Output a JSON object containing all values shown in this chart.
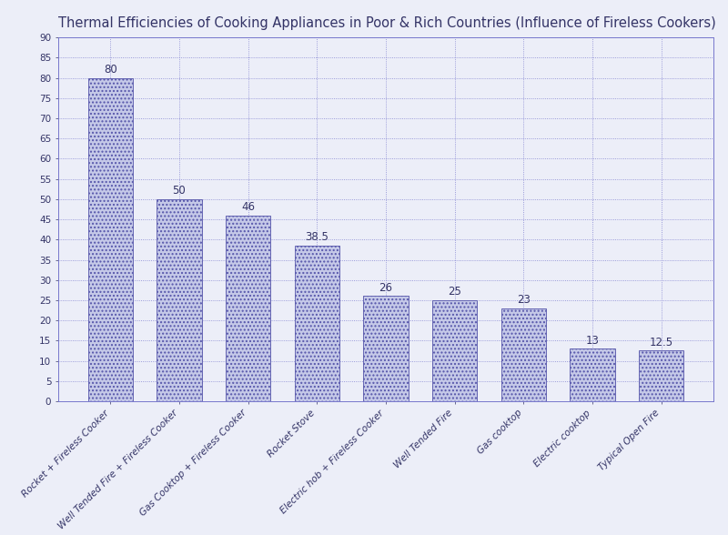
{
  "title": "Thermal Efficiencies of Cooking Appliances in Poor & Rich Countries (Influence of Fireless Cookers)",
  "categories": [
    "Rocket + Fireless Cooker",
    "Well Tended Fire + Fireless Cooker",
    "Gas Cooktop + Fireless Cooker",
    "Rocket Stove",
    "Electric hob + Fireless Cooker",
    "Well Tended Fire",
    "Gas cooktop",
    "Electric cooktop",
    "Typical Open Fire"
  ],
  "values": [
    80,
    50,
    46,
    38.5,
    26,
    25,
    23,
    13,
    12.5
  ],
  "bar_color": "#c5c9e8",
  "bar_edge_color": "#5555aa",
  "bar_hatch": "....",
  "ylim": [
    0,
    90
  ],
  "yticks": [
    0,
    5,
    10,
    15,
    20,
    25,
    30,
    35,
    40,
    45,
    50,
    55,
    60,
    65,
    70,
    75,
    80,
    85,
    90
  ],
  "grid_color": "#7777cc",
  "background_color": "#eceef8",
  "plot_bg_color": "#eceef8",
  "title_fontsize": 10.5,
  "label_fontsize": 7.5,
  "value_fontsize": 8.5,
  "tick_fontsize": 7.5
}
